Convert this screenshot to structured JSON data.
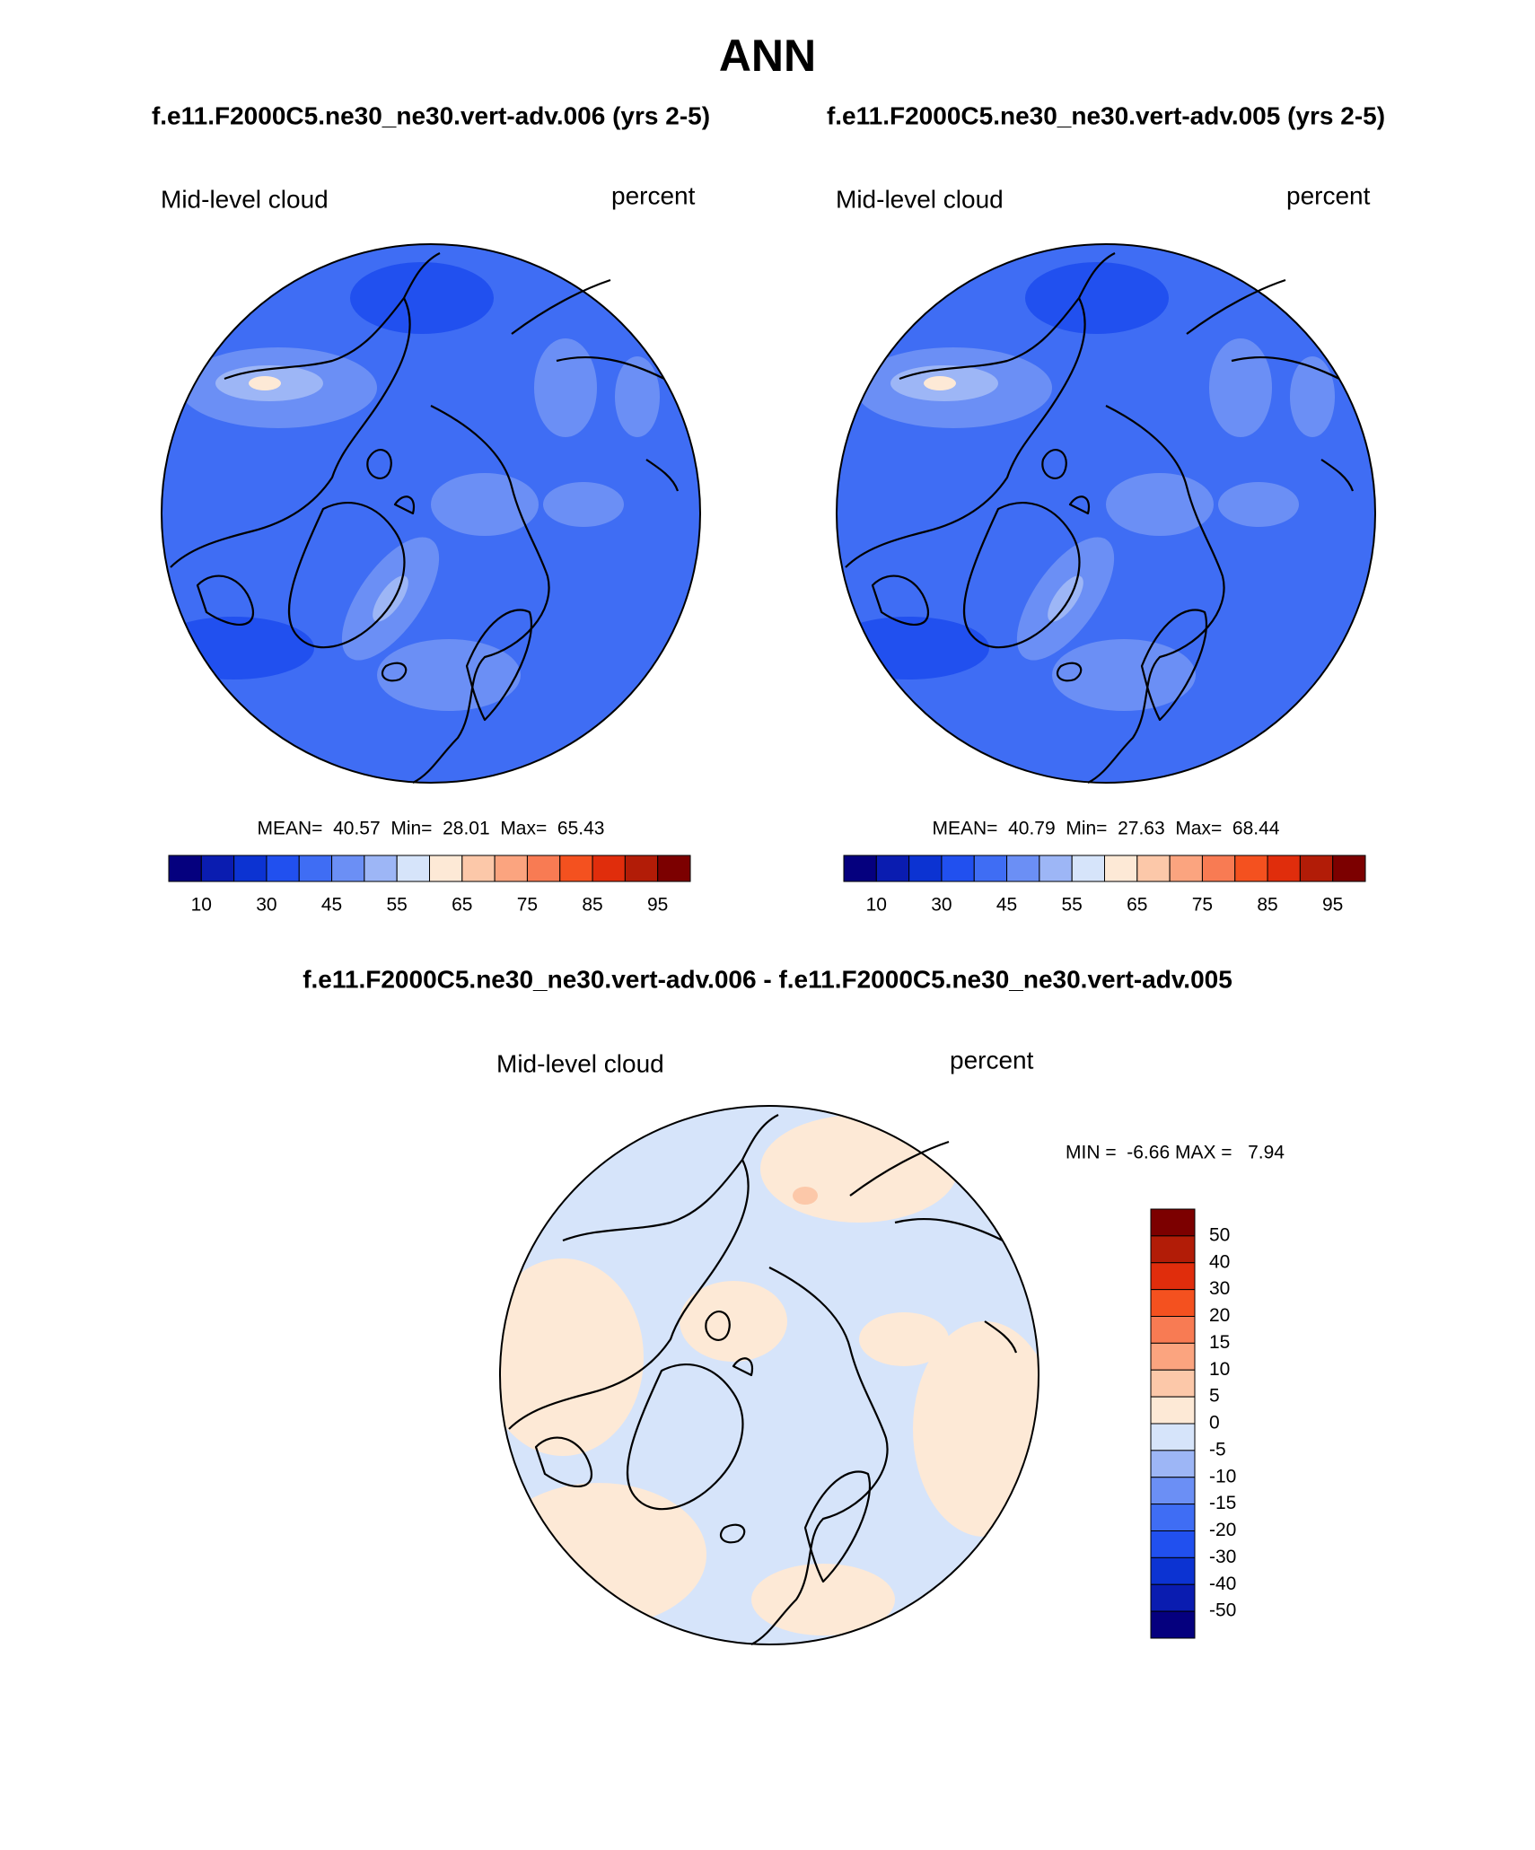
{
  "header": {
    "title": "ANN",
    "subtitle_left": "f.e11.F2000C5.ne30_ne30.vert-adv.006 (yrs 2-5)",
    "subtitle_right": "f.e11.F2000C5.ne30_ne30.vert-adv.005 (yrs 2-5)",
    "diff_title": "f.e11.F2000C5.ne30_ne30.vert-adv.006 - f.e11.F2000C5.ne30_ne30.vert-adv.005"
  },
  "panels": [
    {
      "label": "Mid-level cloud",
      "units": "percent",
      "stats": "MEAN=  40.57  Min=  28.01  Max=  65.43",
      "map": "field",
      "colorbar": {
        "orientation": "horizontal",
        "labels": [
          "10",
          "30",
          "45",
          "55",
          "65",
          "75",
          "85",
          "95"
        ],
        "colors": [
          "#05007e",
          "#0a1cb0",
          "#0c33d2",
          "#2150ef",
          "#3f6df4",
          "#6b8ff5",
          "#9db6f6",
          "#d6e4fa",
          "#fde9d6",
          "#fcc8a9",
          "#fba47f",
          "#f87b53",
          "#f4511f",
          "#e02d0c",
          "#b21c07",
          "#7c0000"
        ]
      }
    },
    {
      "label": "Mid-level cloud",
      "units": "percent",
      "stats": "MEAN=  40.79  Min=  27.63  Max=  68.44",
      "map": "field",
      "colorbar": {
        "orientation": "horizontal",
        "labels": [
          "10",
          "30",
          "45",
          "55",
          "65",
          "75",
          "85",
          "95"
        ],
        "colors": [
          "#05007e",
          "#0a1cb0",
          "#0c33d2",
          "#2150ef",
          "#3f6df4",
          "#6b8ff5",
          "#9db6f6",
          "#d6e4fa",
          "#fde9d6",
          "#fcc8a9",
          "#fba47f",
          "#f87b53",
          "#f4511f",
          "#e02d0c",
          "#b21c07",
          "#7c0000"
        ]
      }
    },
    {
      "label": "Mid-level cloud",
      "units": "percent",
      "stats": "MIN =  -6.66 MAX =   7.94",
      "map": "diff",
      "colorbar": {
        "orientation": "vertical",
        "labels": [
          "50",
          "40",
          "30",
          "20",
          "15",
          "10",
          "5",
          "0",
          "-5",
          "-10",
          "-15",
          "-20",
          "-30",
          "-40",
          "-50"
        ],
        "colors": [
          "#7c0000",
          "#b21c07",
          "#e02d0c",
          "#f4511f",
          "#f87b53",
          "#fba47f",
          "#fcc8a9",
          "#fde9d6",
          "#d6e4fa",
          "#9db6f6",
          "#6b8ff5",
          "#3f6df4",
          "#2150ef",
          "#0c33d2",
          "#0a1cb0",
          "#05007e"
        ]
      }
    }
  ]
}
